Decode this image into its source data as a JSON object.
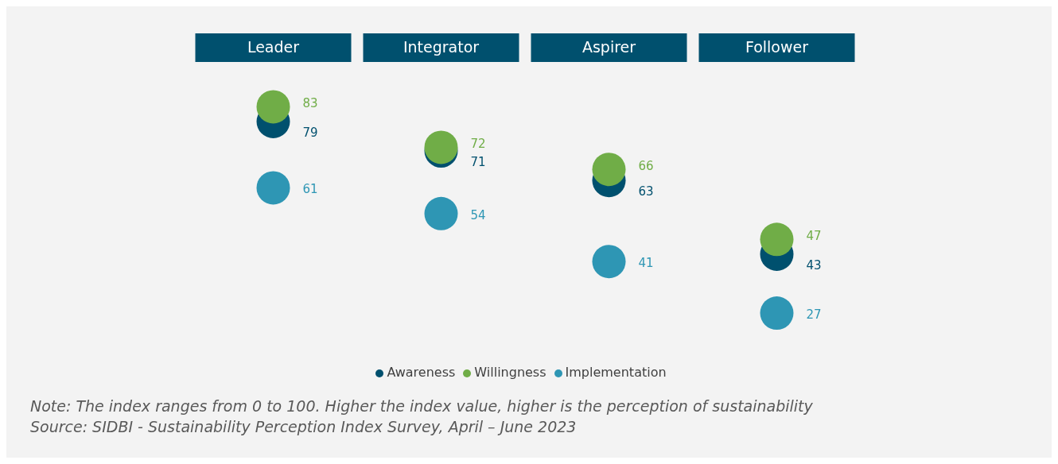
{
  "chart_data": {
    "type": "scatter",
    "categories": [
      "Leader",
      "Integrator",
      "Aspirer",
      "Follower"
    ],
    "series": [
      {
        "name": "Awareness",
        "color": "#00506e",
        "values": [
          79,
          71,
          63,
          43
        ]
      },
      {
        "name": "Willingness",
        "color": "#70ad47",
        "values": [
          83,
          72,
          66,
          47
        ]
      },
      {
        "name": "Implementation",
        "color": "#2e96b4",
        "values": [
          61,
          54,
          41,
          27
        ]
      }
    ],
    "data_labels": true,
    "legend": "bottom",
    "marker": "circle",
    "grid": false,
    "annotations": [
      "Note: The index ranges from 0 to 100. Higher the index value, higher is the perception of sustainability",
      "Source: SIDBI - Sustainability Perception Index Survey, April – June 2023"
    ]
  }
}
